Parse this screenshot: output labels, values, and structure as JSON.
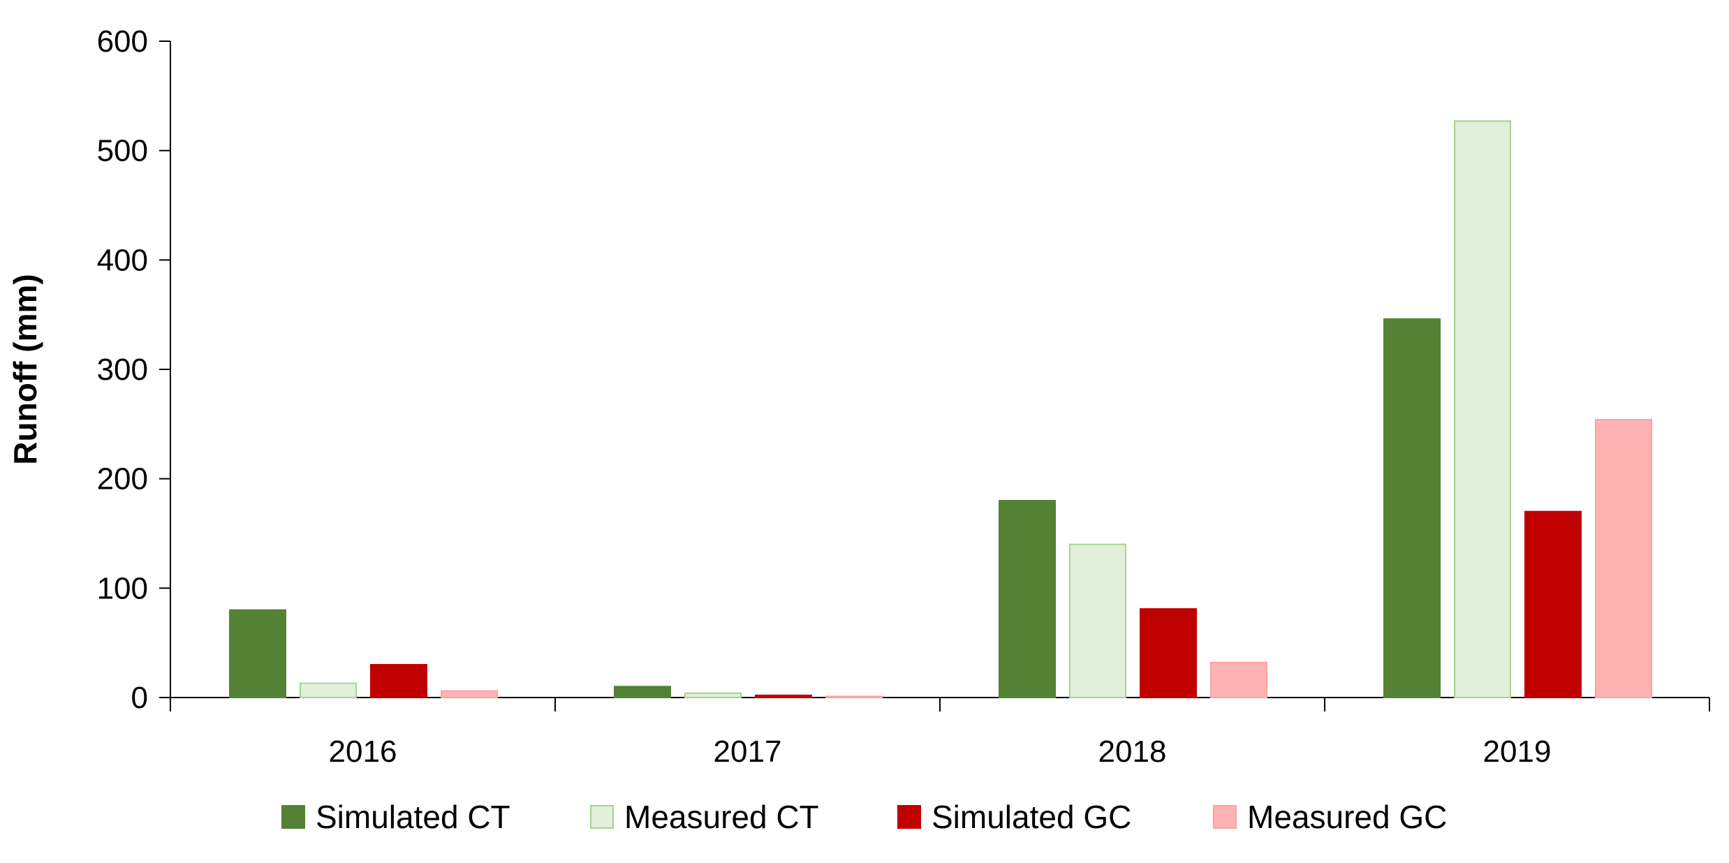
{
  "chart_data": {
    "type": "bar",
    "title": "",
    "xlabel": "",
    "ylabel": "Runoff (mm)",
    "ylim": [
      0,
      600
    ],
    "y_ticks": [
      0,
      100,
      200,
      300,
      400,
      500,
      600
    ],
    "categories": [
      "2016",
      "2017",
      "2018",
      "2019"
    ],
    "grid": false,
    "legend_position": "bottom",
    "series": [
      {
        "name": "Simulated CT",
        "values": [
          80,
          10,
          180,
          346
        ],
        "color": "#548235",
        "stroke": "#548235"
      },
      {
        "name": "Measured CT",
        "values": [
          13,
          4,
          140,
          527
        ],
        "color": "#e2efda",
        "stroke": "#a9d18e"
      },
      {
        "name": "Simulated GC",
        "values": [
          30,
          2,
          81,
          170
        ],
        "color": "#c00000",
        "stroke": "#c00000"
      },
      {
        "name": "Measured GC",
        "values": [
          6,
          1,
          32,
          254
        ],
        "color": "#ffb3b3",
        "stroke": "#ff9f9f"
      }
    ]
  }
}
